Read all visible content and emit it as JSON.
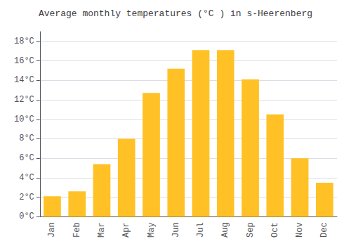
{
  "chart_data": {
    "type": "bar",
    "title": "Average monthly temperatures (°C ) in s-Heerenberg",
    "categories": [
      "Jan",
      "Feb",
      "Mar",
      "Apr",
      "May",
      "Jun",
      "Jul",
      "Aug",
      "Sep",
      "Oct",
      "Nov",
      "Dec"
    ],
    "values": [
      2.1,
      2.6,
      5.4,
      8.0,
      12.7,
      15.2,
      17.1,
      17.1,
      14.1,
      10.5,
      6.0,
      3.5
    ],
    "color": "#FFC125",
    "ylim": [
      0,
      19
    ],
    "yticks": [
      {
        "value": 0,
        "label": "0°C"
      },
      {
        "value": 2,
        "label": "2°C"
      },
      {
        "value": 4,
        "label": "4°C"
      },
      {
        "value": 6,
        "label": "6°C"
      },
      {
        "value": 8,
        "label": "8°C"
      },
      {
        "value": 10,
        "label": "10°C"
      },
      {
        "value": 12,
        "label": "12°C"
      },
      {
        "value": 14,
        "label": "14°C"
      },
      {
        "value": 16,
        "label": "16°C"
      },
      {
        "value": 18,
        "label": "18°C"
      }
    ],
    "grid": true
  }
}
